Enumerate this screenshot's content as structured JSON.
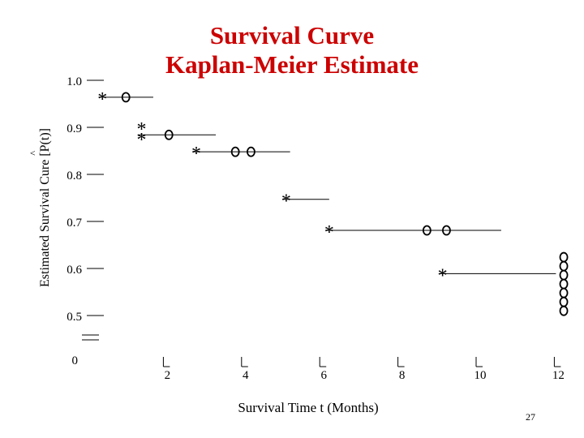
{
  "title_line1": "Survival Curve",
  "title_line2": "Kaplan-Meier Estimate",
  "ylabel_text": "Estimated Survival Cure ",
  "ylabel_symbol": "[P(t)]",
  "ylabel_hat": "^",
  "xlabel": "Survival Time t (Months)",
  "page_number": "27",
  "chart_data": {
    "type": "line",
    "subtype": "kaplan-meier-step",
    "title": "Survival Curve Kaplan-Meier Estimate",
    "xlabel": "Survival Time t (Months)",
    "ylabel": "Estimated Survival Cure [P(t)]",
    "x_ticks": [
      2,
      4,
      6,
      8,
      10,
      12
    ],
    "x_tick_labels": [
      "2",
      "4",
      "6",
      "8",
      "10",
      "12"
    ],
    "y_ticks": [
      1.0,
      0.9,
      0.8,
      0.7,
      0.6,
      0.5
    ],
    "y_tick_labels": [
      "1.0",
      "0.9",
      "0.8",
      "0.7",
      "0.6",
      "0.5"
    ],
    "y_origin_label": "0",
    "xlim": [
      0,
      12
    ],
    "ylim": [
      0.5,
      1.0
    ],
    "axis_break": true,
    "event_marker": "*",
    "censor_marker": "o",
    "steps": [
      {
        "t_start": 0.3,
        "t_end": 1.7,
        "survival": 0.964
      },
      {
        "t_start": 1.3,
        "t_end": 3.3,
        "survival": 0.884
      },
      {
        "t_start": 2.7,
        "t_end": 5.2,
        "survival": 0.848
      },
      {
        "t_start": 5.0,
        "t_end": 6.2,
        "survival": 0.747
      },
      {
        "t_start": 6.1,
        "t_end": 10.6,
        "survival": 0.681
      },
      {
        "t_start": 9.0,
        "t_end": 12.0,
        "survival": 0.589
      }
    ],
    "events": [
      {
        "t": 0.4,
        "survival": 0.964
      },
      {
        "t": 1.4,
        "survival": 0.9
      },
      {
        "t": 1.4,
        "survival": 0.878
      },
      {
        "t": 2.8,
        "survival": 0.848
      },
      {
        "t": 5.1,
        "survival": 0.747
      },
      {
        "t": 6.2,
        "survival": 0.681
      },
      {
        "t": 9.1,
        "survival": 0.589
      }
    ],
    "censored": [
      {
        "t": 1.0,
        "survival": 0.964
      },
      {
        "t": 2.1,
        "survival": 0.884
      },
      {
        "t": 3.8,
        "survival": 0.848
      },
      {
        "t": 4.2,
        "survival": 0.848
      },
      {
        "t": 8.7,
        "survival": 0.681
      },
      {
        "t": 9.2,
        "survival": 0.681
      },
      {
        "t": 12.2,
        "survival": 0.624
      },
      {
        "t": 12.2,
        "survival": 0.605
      },
      {
        "t": 12.2,
        "survival": 0.586
      },
      {
        "t": 12.2,
        "survival": 0.567
      },
      {
        "t": 12.2,
        "survival": 0.548
      },
      {
        "t": 12.2,
        "survival": 0.529
      },
      {
        "t": 12.2,
        "survival": 0.51
      }
    ]
  }
}
